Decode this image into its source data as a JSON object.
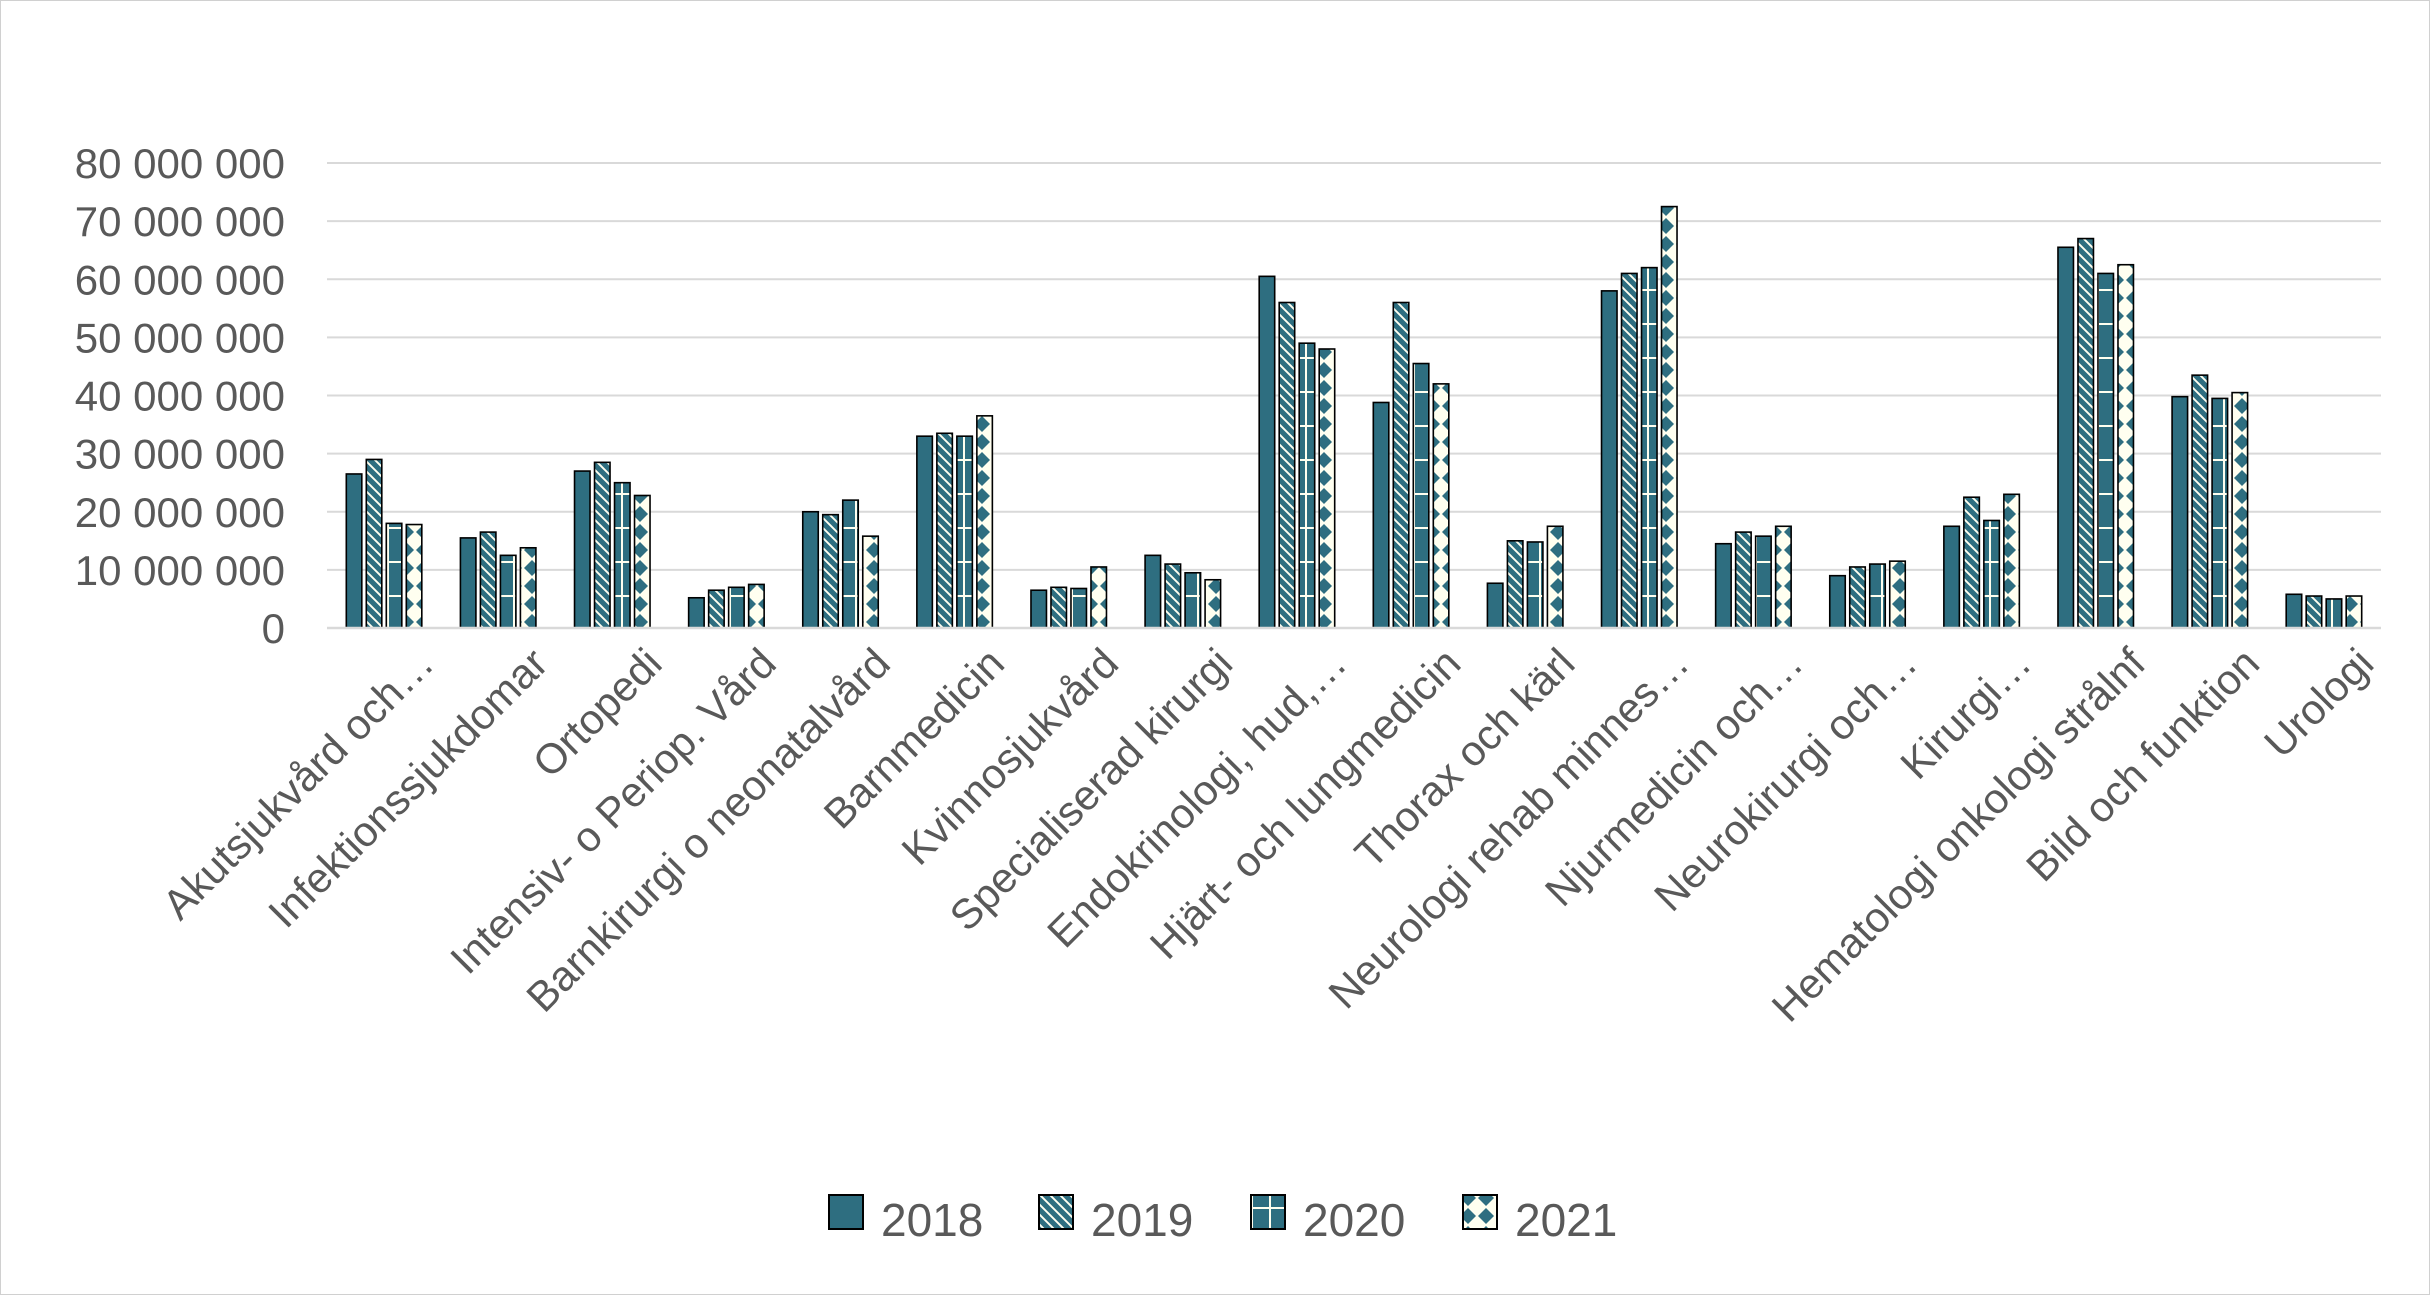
{
  "chart_data": {
    "type": "bar",
    "title": "",
    "xlabel": "",
    "ylabel": "",
    "ylim": [
      0,
      80000000
    ],
    "yticks": [
      0,
      10000000,
      20000000,
      30000000,
      40000000,
      50000000,
      60000000,
      70000000,
      80000000
    ],
    "ytick_labels": [
      "0",
      "10 000 000",
      "20 000 000",
      "30 000 000",
      "40 000 000",
      "50 000 000",
      "60 000 000",
      "70 000 000",
      "80 000 000"
    ],
    "grid": true,
    "legend_position": "bottom",
    "categories": [
      "Akutsjukvård och…",
      "Infektionssjukdomar",
      "Ortopedi",
      "Intensiv- o Periop. Vård",
      "Barnkirurgi o neonatalvård",
      "Barnmedicin",
      "Kvinnosjukvård",
      "Specialiserad kirurgi",
      "Endokrinologi, hud,…",
      "Hjärt- och lungmedicin",
      "Thorax och kärl",
      "Neurologi rehab minnes…",
      "Njurmedicin och…",
      "Neurokirurgi och…",
      "Kirurgi…",
      "Hematologi onkologi strålnf",
      "Bild och funktion",
      "Urologi"
    ],
    "series": [
      {
        "name": "2018",
        "pattern": "solid",
        "values": [
          26500000,
          15500000,
          27000000,
          5200000,
          20000000,
          33000000,
          6500000,
          12500000,
          60500000,
          38800000,
          7700000,
          58000000,
          14500000,
          9000000,
          17500000,
          65500000,
          39800000,
          5800000
        ]
      },
      {
        "name": "2019",
        "pattern": "diagonal",
        "values": [
          29000000,
          16500000,
          28500000,
          6500000,
          19500000,
          33500000,
          7000000,
          11000000,
          56000000,
          56000000,
          15000000,
          61000000,
          16500000,
          10500000,
          22500000,
          67000000,
          43500000,
          5500000
        ]
      },
      {
        "name": "2020",
        "pattern": "cross",
        "values": [
          18000000,
          12500000,
          25000000,
          7000000,
          22000000,
          33000000,
          6800000,
          9500000,
          49000000,
          45500000,
          14800000,
          62000000,
          15800000,
          11000000,
          18500000,
          61000000,
          39500000,
          5000000
        ]
      },
      {
        "name": "2021",
        "pattern": "dots",
        "values": [
          17800000,
          13800000,
          22800000,
          7500000,
          15800000,
          36500000,
          10500000,
          8300000,
          48000000,
          42000000,
          17500000,
          72500000,
          17500000,
          11500000,
          23000000,
          62500000,
          40500000,
          5500000
        ]
      }
    ],
    "colors": {
      "fill": "#2E6E80",
      "light": "#FFFFF0",
      "edge": "#000000",
      "grid": "#D9D9D9",
      "text": "#595959"
    }
  }
}
